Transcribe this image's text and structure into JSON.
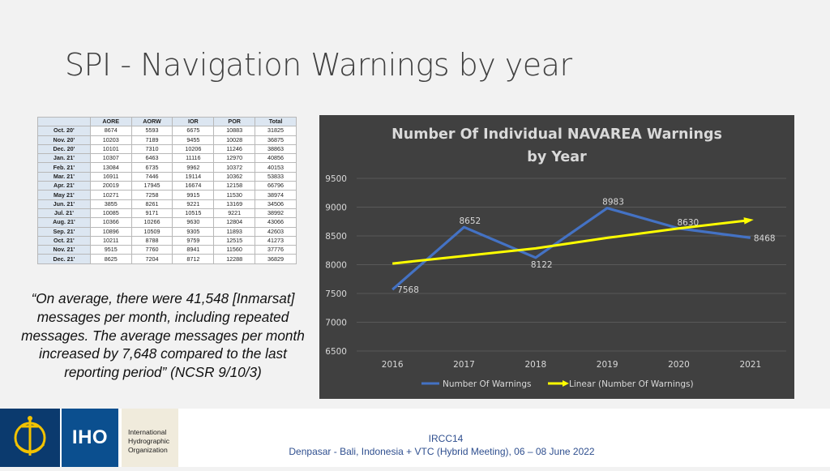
{
  "slide": {
    "title": "SPI - Navigation Warnings by year"
  },
  "table": {
    "headers": [
      "",
      "AORE",
      "AORW",
      "IOR",
      "POR",
      "Total"
    ],
    "rows": [
      [
        "Oct. 20'",
        "8674",
        "5593",
        "6675",
        "10883",
        "31825"
      ],
      [
        "Nov. 20'",
        "10203",
        "7189",
        "9455",
        "10028",
        "36875"
      ],
      [
        "Dec. 20'",
        "10101",
        "7310",
        "10206",
        "11246",
        "38863"
      ],
      [
        "Jan. 21'",
        "10307",
        "6463",
        "11116",
        "12970",
        "40856"
      ],
      [
        "Feb. 21'",
        "13084",
        "6735",
        "9962",
        "10372",
        "40153"
      ],
      [
        "Mar. 21'",
        "16911",
        "7446",
        "19114",
        "10362",
        "53833"
      ],
      [
        "Apr. 21'",
        "20019",
        "17945",
        "16674",
        "12158",
        "66796"
      ],
      [
        "May 21'",
        "10271",
        "7258",
        "9915",
        "11530",
        "38974"
      ],
      [
        "Jun. 21'",
        "3855",
        "8261",
        "9221",
        "13169",
        "34506"
      ],
      [
        "Jul. 21'",
        "10085",
        "9171",
        "10515",
        "9221",
        "38992"
      ],
      [
        "Aug. 21'",
        "10366",
        "10266",
        "9630",
        "12804",
        "43066"
      ],
      [
        "Sep. 21'",
        "10896",
        "10509",
        "9305",
        "11893",
        "42603"
      ],
      [
        "Oct. 21'",
        "10211",
        "8788",
        "9759",
        "12515",
        "41273"
      ],
      [
        "Nov. 21'",
        "9515",
        "7760",
        "8941",
        "11560",
        "37776"
      ],
      [
        "Dec. 21'",
        "8625",
        "7204",
        "8712",
        "12288",
        "36829"
      ]
    ]
  },
  "quote": {
    "text": "“On average, there were 41,548 [Inmarsat] messages per month, including repeated messages. The average messages per month increased by 7,648 compared to the last reporting period”  (NCSR 9/10/3)"
  },
  "chart_data": {
    "type": "line",
    "title": "Number Of Individual NAVAREA Warnings by Year",
    "x": [
      "2016",
      "2017",
      "2018",
      "2019",
      "2020",
      "2021"
    ],
    "series": [
      {
        "name": "Number Of Warnings",
        "values": [
          7568,
          8652,
          8122,
          8983,
          8630,
          8468
        ],
        "color": "#4472c4"
      },
      {
        "name": "Linear (Number Of Warnings)",
        "values": [
          8020,
          8152,
          8284,
          8466,
          8630,
          8775
        ],
        "color": "#ffff00",
        "trendline": true
      }
    ],
    "data_labels": [
      "7568",
      "8652",
      "8122",
      "8983",
      "8630",
      "8468"
    ],
    "ylim": [
      6500,
      9500
    ],
    "yticks": [
      "9500",
      "9000",
      "8500",
      "8000",
      "7500",
      "7000",
      "6500"
    ],
    "grid": true,
    "legend": "bottom",
    "background": "#404040"
  },
  "footer": {
    "logo_text": "IHO",
    "org_lines": [
      "International",
      "Hydrographic",
      "Organization"
    ],
    "event": "IRCC14",
    "venue": "Denpasar - Bali, Indonesia + VTC (Hybrid Meeting), 06 – 08 June 2022"
  }
}
